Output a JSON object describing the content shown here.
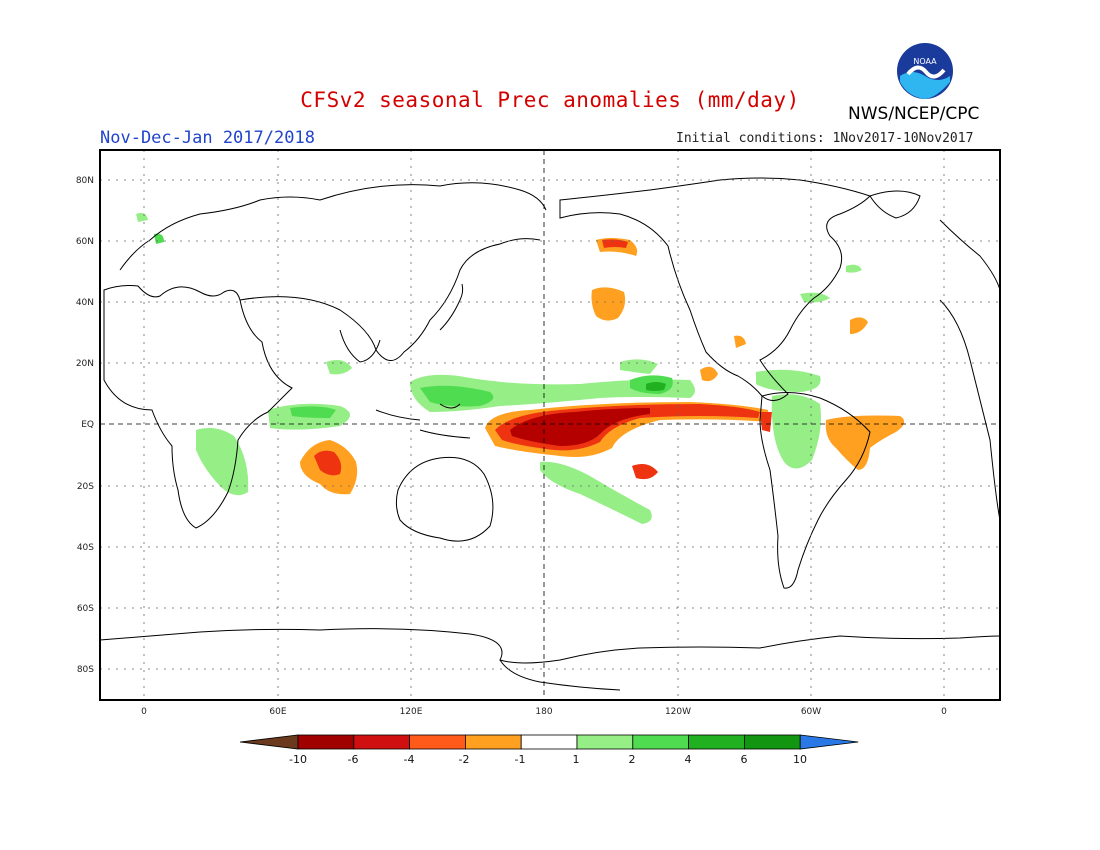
{
  "title": "CFSv2 seasonal Prec anomalies (mm/day)",
  "season": "Nov-Dec-Jan 2017/2018",
  "initial_conditions": "Initial conditions: 1Nov2017-10Nov2017",
  "organization": "NWS/NCEP/CPC",
  "logo_text": "NOAA",
  "map": {
    "lat_labels": [
      "80N",
      "60N",
      "40N",
      "20N",
      "EQ",
      "20S",
      "40S",
      "60S",
      "80S"
    ],
    "lon_labels": [
      "0",
      "60E",
      "120E",
      "180",
      "120W",
      "60W",
      "0"
    ],
    "grid": true
  },
  "colorbar": {
    "labels": [
      "-10",
      "-6",
      "-4",
      "-2",
      "-1",
      "1",
      "2",
      "4",
      "6",
      "10"
    ],
    "colors": [
      "#6b3a1e",
      "#a00000",
      "#d01010",
      "#ff5a1a",
      "#ffa020",
      "#ffffff",
      "#96ee86",
      "#50dc50",
      "#20b020",
      "#129612",
      "#2a78e6"
    ]
  },
  "colors": {
    "dry_strong": "#b50000",
    "dry_mod": "#ee3311",
    "dry_weak": "#ffa020",
    "wet_weak": "#96ee86",
    "wet_mod": "#50dc50",
    "wet_strong": "#20b020"
  }
}
